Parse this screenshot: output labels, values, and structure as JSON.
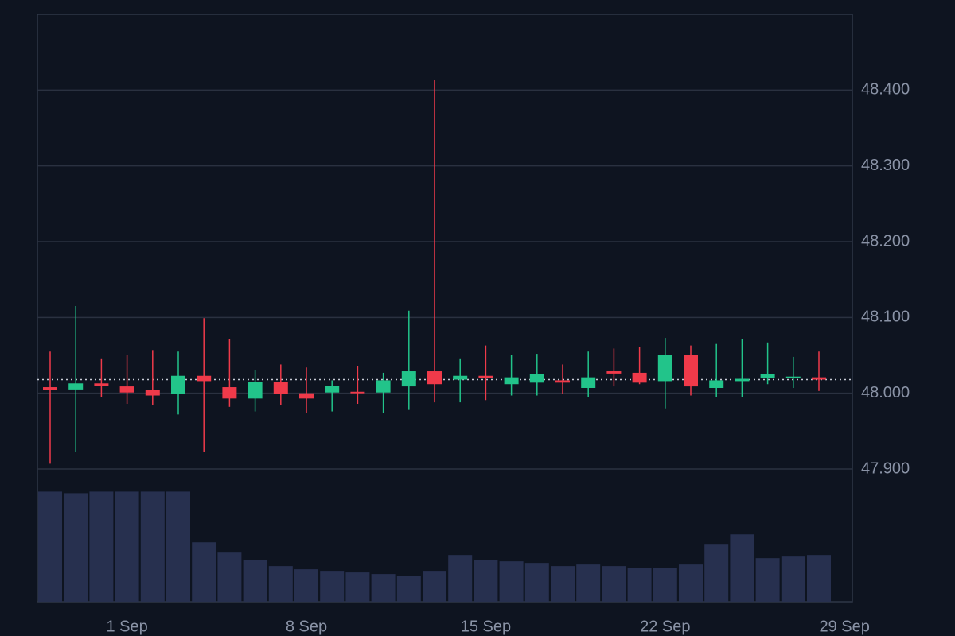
{
  "chart_data": {
    "type": "candlestick",
    "categories": [
      "29 Aug",
      "30 Aug",
      "31 Aug",
      "1 Sep",
      "2 Sep",
      "3 Sep",
      "4 Sep",
      "5 Sep",
      "6 Sep",
      "7 Sep",
      "8 Sep",
      "9 Sep",
      "10 Sep",
      "11 Sep",
      "12 Sep",
      "13 Sep",
      "14 Sep",
      "15 Sep",
      "16 Sep",
      "17 Sep",
      "18 Sep",
      "19 Sep",
      "20 Sep",
      "21 Sep",
      "22 Sep",
      "23 Sep",
      "24 Sep",
      "25 Sep",
      "26 Sep",
      "27 Sep",
      "28 Sep"
    ],
    "open": [
      48.008,
      48.005,
      48.013,
      48.009,
      48.004,
      47.999,
      48.023,
      48.008,
      47.993,
      48.015,
      48.0,
      48.001,
      48.002,
      48.001,
      48.009,
      48.029,
      48.018,
      48.023,
      48.012,
      48.014,
      48.017,
      48.007,
      48.029,
      48.027,
      48.016,
      48.05,
      48.007,
      48.016,
      48.02,
      48.021,
      48.021
    ],
    "high": [
      48.055,
      48.115,
      48.046,
      48.05,
      48.057,
      48.055,
      48.099,
      48.071,
      48.031,
      48.038,
      48.034,
      48.017,
      48.036,
      48.027,
      48.109,
      48.413,
      48.046,
      48.063,
      48.05,
      48.052,
      48.038,
      48.055,
      48.059,
      48.061,
      48.073,
      48.063,
      48.065,
      48.071,
      48.067,
      48.048,
      48.055
    ],
    "low": [
      47.907,
      47.923,
      47.995,
      47.986,
      47.984,
      47.972,
      47.923,
      47.982,
      47.976,
      47.984,
      47.974,
      47.976,
      47.986,
      47.974,
      47.978,
      47.988,
      47.988,
      47.991,
      47.997,
      47.997,
      47.999,
      47.995,
      48.009,
      48.012,
      47.98,
      47.997,
      47.995,
      47.995,
      48.012,
      48.007,
      48.003
    ],
    "close": [
      48.004,
      48.013,
      48.01,
      48.001,
      47.997,
      48.023,
      48.016,
      47.993,
      48.015,
      47.999,
      47.993,
      48.01,
      48.0,
      48.017,
      48.029,
      48.012,
      48.023,
      48.02,
      48.021,
      48.025,
      48.014,
      48.021,
      48.026,
      48.014,
      48.05,
      48.009,
      48.017,
      48.019,
      48.025,
      48.022,
      48.018
    ],
    "volume": [
      139,
      137,
      139,
      139,
      139,
      139,
      75,
      63,
      53,
      45,
      41,
      39,
      37,
      35,
      33,
      39,
      59,
      53,
      51,
      49,
      45,
      47,
      45,
      43,
      43,
      47,
      73,
      85,
      55,
      57,
      59
    ],
    "up_color": "#22c48a",
    "down_color": "#ef3a4a",
    "volume_color": "#27304f",
    "last_price": 48.018,
    "ylim": [
      47.9,
      48.5
    ],
    "yticks": [
      {
        "value": 47.9,
        "label": "47.900"
      },
      {
        "value": 48.0,
        "label": "48.000"
      },
      {
        "value": 48.1,
        "label": "48.100"
      },
      {
        "value": 48.2,
        "label": "48.200"
      },
      {
        "value": 48.3,
        "label": "48.300"
      },
      {
        "value": 48.4,
        "label": "48.400"
      }
    ],
    "xticks": [
      "1 Sep",
      "8 Sep",
      "15 Sep",
      "22 Sep",
      "29 Sep"
    ],
    "grid": true
  }
}
